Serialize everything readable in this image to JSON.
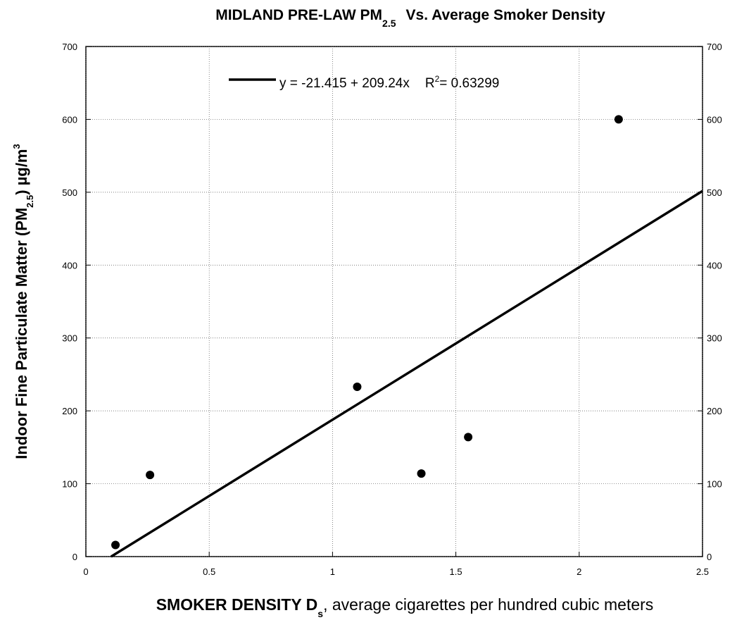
{
  "chart_data": {
    "type": "scatter",
    "title": [
      "MIDLAND PRE-LAW PM",
      "2.5",
      "Vs. Average Smoker Density"
    ],
    "x_label": [
      "SMOKER DENSITY D",
      "s",
      ", average cigarettes per hundred cubic meters"
    ],
    "y_label": [
      "Indoor Fine Particulate Matter (PM",
      "2.5",
      ") µg/m",
      "3"
    ],
    "x": [
      0.12,
      0.26,
      1.1,
      1.36,
      1.55,
      2.16
    ],
    "values": [
      16,
      112,
      233,
      114,
      164,
      600
    ],
    "color": "#000000",
    "fit": {
      "intercept": -21.415,
      "slope": 209.24,
      "equation": "y = -21.415 + 209.24x",
      "r2_label": [
        "R",
        "2",
        "= 0.63299"
      ]
    },
    "xlim": [
      0,
      2.5
    ],
    "xticks": [
      0,
      0.5,
      1,
      1.5,
      2,
      2.5
    ],
    "ylim": [
      0,
      700
    ],
    "yticks": [
      0,
      100,
      200,
      300,
      400,
      500,
      600,
      700
    ],
    "y2lim": [
      0,
      700
    ],
    "y2ticks": [
      0,
      100,
      200,
      300,
      400,
      500,
      600,
      700
    ],
    "grid": true
  }
}
